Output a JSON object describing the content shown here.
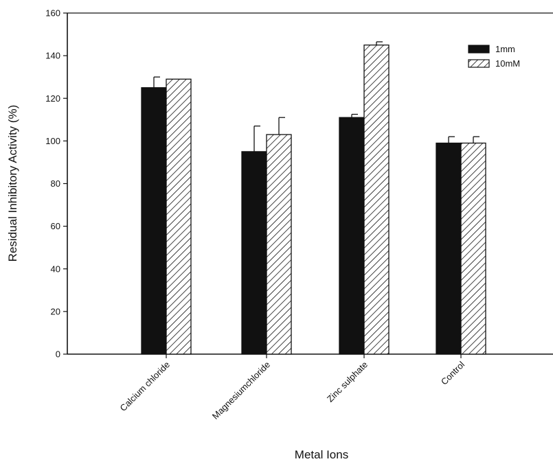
{
  "chart_data": {
    "type": "bar",
    "categories": [
      "Calcium chloride",
      "Magnesiumchloride",
      "Zinc sulphate",
      "Control"
    ],
    "series": [
      {
        "name": "1mm",
        "values": [
          125,
          95,
          111,
          99
        ],
        "errors": [
          5,
          12,
          1.5,
          3
        ],
        "fill": "#111111",
        "pattern": "solid"
      },
      {
        "name": "10mM",
        "values": [
          129,
          103,
          145,
          99
        ],
        "errors": [
          0,
          8,
          1.5,
          3
        ],
        "fill": "#ffffff",
        "pattern": "hatch"
      }
    ],
    "title": "",
    "xlabel": "Metal Ions",
    "ylabel": "Residual Inhibitory Activity (%)",
    "ylim": [
      0,
      160
    ],
    "yticks": [
      0,
      20,
      40,
      60,
      80,
      100,
      120,
      140,
      160
    ],
    "grid": false,
    "legend_position": "top-right"
  }
}
